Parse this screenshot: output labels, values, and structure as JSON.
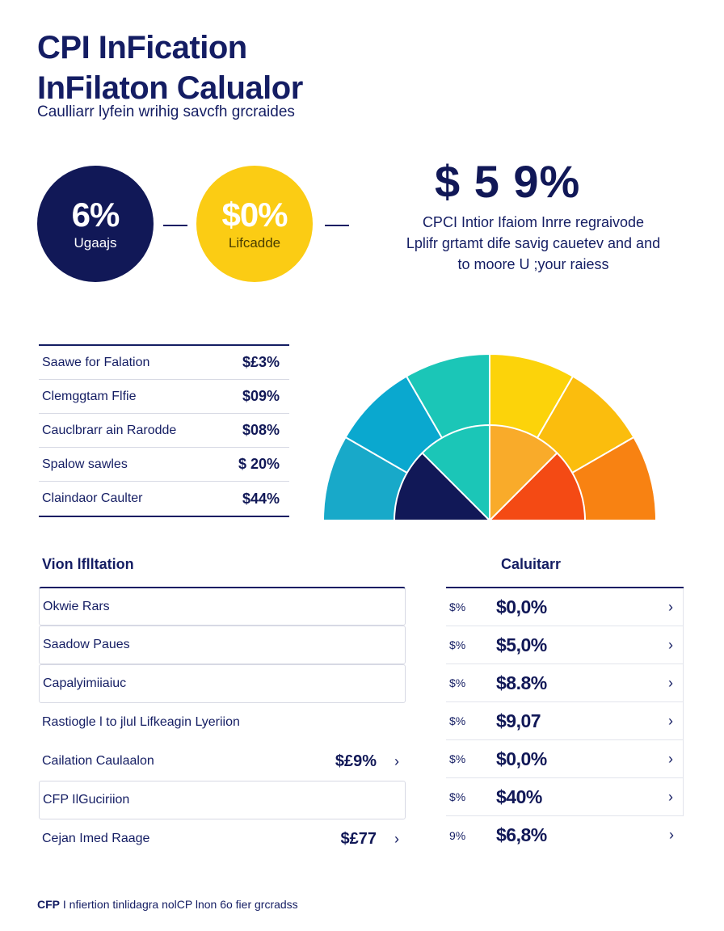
{
  "header": {
    "title_line1": "CPI  InFication",
    "title_line2": "InFilaton Calualor",
    "subtitle": "Caulliarr lyfein wrihig savcfh grcraides"
  },
  "kpis": [
    {
      "value": "6%",
      "label": "Ugaajs",
      "color": "#111857"
    },
    {
      "value": "$0%",
      "label": "Lifcadde",
      "color": "#fbcc14"
    }
  ],
  "highlight": {
    "value": "$ 5 9%",
    "lines": [
      "CPCI  Intior Ifaiom Inrre regraivode",
      "Lplifr grtamt dife savig cauetev and  and",
      "to moore U ;your raiess"
    ]
  },
  "summary_rows": [
    {
      "label": "Saawe for Falation",
      "value": "$£3%"
    },
    {
      "label": "Clemggtam Flfie",
      "value": "$09%"
    },
    {
      "label": "Cauclbrarr ain Rarodde",
      "value": "$08%"
    },
    {
      "label": "Spalow sawles",
      "value": "$ 20%"
    },
    {
      "label": "Claindaor Caulter",
      "value": "$44%"
    }
  ],
  "gauge": {
    "colors_outer": [
      "#18a9c9",
      "#0aa8cf",
      "#1bc6b7",
      "#fcd30a",
      "#fbbd0d",
      "#f88212"
    ],
    "colors_inner": [
      "#111857",
      "#1bc6b7",
      "#f9ab2a",
      "#f44a14"
    ]
  },
  "sections": {
    "left_title": "Vion lflltation",
    "right_title": "Caluitarr"
  },
  "left_rows": [
    {
      "label": "Okwie Rars",
      "value": "",
      "chevron": ""
    },
    {
      "label": "Saadow Paues",
      "value": "",
      "chevron": ""
    },
    {
      "label": "Capalyimiiaiuc",
      "value": "",
      "chevron": ""
    },
    {
      "label": "Rastiogle l to jlul Lifkeagin Lyeriion",
      "value": "",
      "chevron": ""
    },
    {
      "label": "Cailation Caulaalon",
      "value": "$£9%",
      "chevron": "›"
    },
    {
      "label": "CFP IlGuciriion",
      "value": "",
      "chevron": ""
    },
    {
      "label": "Cejan Imed Raage",
      "value": "$£77",
      "chevron": "›"
    }
  ],
  "right_rows": [
    {
      "pct": "$%",
      "value": "$0,0%",
      "chevron": "›"
    },
    {
      "pct": "$%",
      "value": "$5,0%",
      "chevron": "›"
    },
    {
      "pct": "$%",
      "value": "$8.8%",
      "chevron": "›"
    },
    {
      "pct": "$%",
      "value": "$9,07",
      "chevron": "›"
    },
    {
      "pct": "$%",
      "value": "$0,0%",
      "chevron": "›"
    },
    {
      "pct": "$%",
      "value": "$40%",
      "chevron": "›"
    },
    {
      "pct": "9%",
      "value": "$6,8%",
      "chevron": "›"
    }
  ],
  "footer": {
    "brand": "CFP",
    "text": " I nfiertion tinlidagra nolCP lnon 6o fier grcradss"
  }
}
